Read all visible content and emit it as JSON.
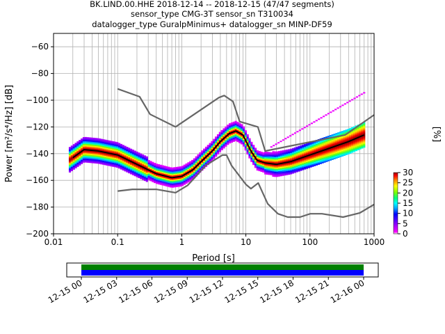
{
  "title_lines": [
    "BK.LIND.00.HHE   2018-12-14 -- 2018-12-15  (47/47 segments)",
    "sensor_type CMG-3T sensor_sn T310034",
    "datalogger_type GuralpMinimus+ datalogger_sn MINP-DF59"
  ],
  "chart_data": [
    {
      "type": "heatmap",
      "title": "BK.LIND.00.HHE   2018-12-14 -- 2018-12-15  (47/47 segments)",
      "xlabel": "Period [s]",
      "ylabel": "Power [m²/s⁴/Hz] [dB]",
      "xscale": "log",
      "xlim": [
        0.01,
        1000
      ],
      "ylim": [
        -200,
        -50
      ],
      "x_ticks": [
        0.01,
        0.1,
        1,
        10,
        100,
        1000
      ],
      "x_tick_labels": [
        "0.01",
        "0.1",
        "1",
        "10",
        "100",
        "1000"
      ],
      "y_ticks": [
        -200,
        -180,
        -160,
        -140,
        -120,
        -100,
        -80,
        -60
      ],
      "y_tick_labels": [
        "−200",
        "−180",
        "−160",
        "−140",
        "−120",
        "−100",
        "−80",
        "−60"
      ],
      "grid": true,
      "colorbar": {
        "label": "[%]",
        "range": [
          0,
          30
        ],
        "ticks": [
          0,
          5,
          10,
          15,
          20,
          25,
          30
        ],
        "tick_labels": [
          "0",
          "5",
          "10",
          "15",
          "20",
          "25",
          "30"
        ],
        "colormap": "pqlx"
      },
      "series": [
        {
          "name": "",
          "role": "noise-model-high",
          "color": "#666666",
          "points": [
            [
              0.1,
              -91.5
            ],
            [
              0.22,
              -97.4
            ],
            [
              0.32,
              -110.5
            ],
            [
              0.8,
              -120
            ],
            [
              3.8,
              -98
            ],
            [
              4.6,
              -96.5
            ],
            [
              6.3,
              -101
            ],
            [
              8,
              -116
            ],
            [
              15.4,
              -120
            ],
            [
              20,
              -138
            ],
            [
              354.8,
              -126
            ],
            [
              1000,
              -111
            ]
          ]
        },
        {
          "name": "",
          "role": "noise-model-low",
          "color": "#666666",
          "points": [
            [
              0.1,
              -168
            ],
            [
              0.17,
              -166.7
            ],
            [
              0.4,
              -166.7
            ],
            [
              0.8,
              -169.2
            ],
            [
              1.24,
              -163.7
            ],
            [
              2.4,
              -148.6
            ],
            [
              4.3,
              -141.1
            ],
            [
              5,
              -141.1
            ],
            [
              6,
              -149
            ],
            [
              10,
              -163
            ],
            [
              12,
              -166.2
            ],
            [
              15.6,
              -162
            ],
            [
              21.9,
              -177.5
            ],
            [
              31.6,
              -185
            ],
            [
              45,
              -187.5
            ],
            [
              70,
              -187.5
            ],
            [
              101,
              -185
            ],
            [
              154,
              -185
            ],
            [
              328,
              -187.5
            ],
            [
              600,
              -184.4
            ],
            [
              1000,
              -178
            ]
          ]
        },
        {
          "name": "",
          "role": "mode",
          "color": "#000000",
          "points": [
            [
              0.02,
              -143
            ],
            [
              0.03,
              -137
            ],
            [
              0.05,
              -138
            ],
            [
              0.1,
              -141
            ],
            [
              0.2,
              -148
            ],
            [
              0.4,
              -155
            ],
            [
              0.7,
              -158
            ],
            [
              1,
              -157
            ],
            [
              1.5,
              -152
            ],
            [
              2,
              -146
            ],
            [
              3,
              -138
            ],
            [
              4,
              -131
            ],
            [
              5.5,
              -125
            ],
            [
              7,
              -123
            ],
            [
              9,
              -126
            ],
            [
              12,
              -138
            ],
            [
              15,
              -145
            ],
            [
              20,
              -147
            ],
            [
              30,
              -148
            ],
            [
              50,
              -146
            ],
            [
              100,
              -141
            ],
            [
              200,
              -136
            ],
            [
              400,
              -131
            ],
            [
              700,
              -126
            ]
          ]
        }
      ]
    },
    {
      "type": "timeline",
      "x_tick_labels": [
        "12-15 00",
        "12-15 03",
        "12-15 06",
        "12-15 09",
        "12-15 12",
        "12-15 15",
        "12-15 18",
        "12-15 21",
        "12-16 00"
      ],
      "bands": [
        {
          "color": "#008000",
          "start": "12-15 00",
          "end": "12-16 00"
        },
        {
          "color": "#0000ff",
          "start": "12-15 00",
          "end": "12-16 00"
        }
      ]
    }
  ]
}
